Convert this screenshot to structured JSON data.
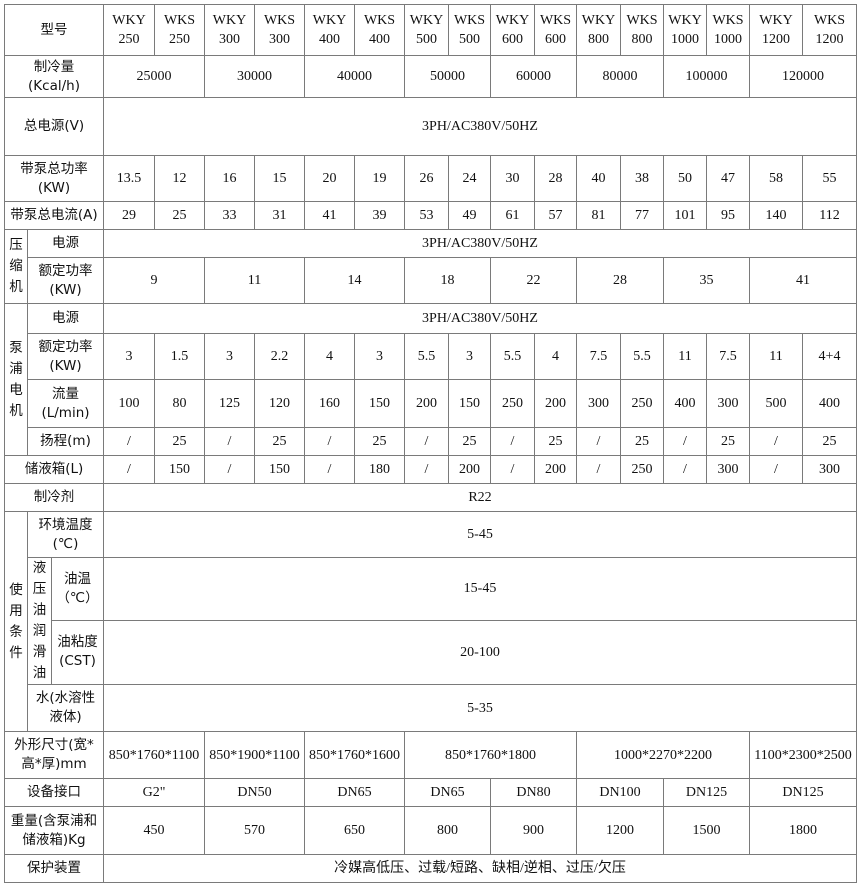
{
  "models": [
    {
      "series": "WKY",
      "size": "250"
    },
    {
      "series": "WKS",
      "size": "250"
    },
    {
      "series": "WKY",
      "size": "300"
    },
    {
      "series": "WKS",
      "size": "300"
    },
    {
      "series": "WKY",
      "size": "400"
    },
    {
      "series": "WKS",
      "size": "400"
    },
    {
      "series": "WKY",
      "size": "500"
    },
    {
      "series": "WKS",
      "size": "500"
    },
    {
      "series": "WKY",
      "size": "600"
    },
    {
      "series": "WKS",
      "size": "600"
    },
    {
      "series": "WKY",
      "size": "800"
    },
    {
      "series": "WKS",
      "size": "800"
    },
    {
      "series": "WKY",
      "size": "1000"
    },
    {
      "series": "WKS",
      "size": "1000"
    },
    {
      "series": "WKY",
      "size": "1200"
    },
    {
      "series": "WKS",
      "size": "1200"
    }
  ],
  "labels": {
    "model": "型号",
    "cooling": [
      "制冷量",
      "(Kcal/h)"
    ],
    "main_power": "总电源(V)",
    "total_power": [
      "带泵总功率",
      "(KW)"
    ],
    "total_current": "带泵总电流(A)",
    "compressor": "压缩机",
    "power_supply": "电源",
    "rated_power": [
      "额定功率",
      "(KW)"
    ],
    "pump_motor": "泵浦电机",
    "flow": [
      "流量",
      "(L/min)"
    ],
    "head": "扬程(m)",
    "tank": "储液箱(L)",
    "refrigerant": "制冷剂",
    "usage": "使用条件",
    "ambient": [
      "环境温度",
      "(℃)"
    ],
    "hydraulic_oil": "液压油润滑油",
    "oil_temp": [
      "油温",
      "（℃）"
    ],
    "oil_viscosity": [
      "油粘度",
      "(CST)"
    ],
    "water": [
      "水(水溶性",
      "液体)"
    ],
    "dimensions": [
      "外形尺寸(宽*",
      "高*厚)mm"
    ],
    "interface": "设备接口",
    "weight": [
      "重量(含泵浦和",
      "储液箱)Kg"
    ],
    "protection": "保护装置"
  },
  "values": {
    "cooling": [
      "25000",
      "30000",
      "40000",
      "50000",
      "60000",
      "80000",
      "100000",
      "120000"
    ],
    "main_power": "3PH/AC380V/50HZ",
    "total_power": [
      "13.5",
      "12",
      "16",
      "15",
      "20",
      "19",
      "26",
      "24",
      "30",
      "28",
      "40",
      "38",
      "50",
      "47",
      "58",
      "55"
    ],
    "total_current": [
      "29",
      "25",
      "33",
      "31",
      "41",
      "39",
      "53",
      "49",
      "61",
      "57",
      "81",
      "77",
      "101",
      "95",
      "140",
      "112"
    ],
    "compressor_power_supply": "3PH/AC380V/50HZ",
    "compressor_rated_power": [
      "9",
      "11",
      "14",
      "18",
      "22",
      "28",
      "35",
      "41"
    ],
    "pump_power_supply": "3PH/AC380V/50HZ",
    "pump_rated_power": [
      "3",
      "1.5",
      "3",
      "2.2",
      "4",
      "3",
      "5.5",
      "3",
      "5.5",
      "4",
      "7.5",
      "5.5",
      "11",
      "7.5",
      "11",
      "4+4"
    ],
    "flow": [
      "100",
      "80",
      "125",
      "120",
      "160",
      "150",
      "200",
      "150",
      "250",
      "200",
      "300",
      "250",
      "400",
      "300",
      "500",
      "400"
    ],
    "head": [
      "/",
      "25",
      "/",
      "25",
      "/",
      "25",
      "/",
      "25",
      "/",
      "25",
      "/",
      "25",
      "/",
      "25",
      "/",
      "25"
    ],
    "tank": [
      "/",
      "150",
      "/",
      "150",
      "/",
      "180",
      "/",
      "200",
      "/",
      "200",
      "/",
      "250",
      "/",
      "300",
      "/",
      "300"
    ],
    "refrigerant": "R22",
    "ambient": "5-45",
    "oil_temp": "15-45",
    "oil_viscosity": "20-100",
    "water": "5-35",
    "dimensions": [
      "850*1760*1100",
      "850*1900*1100",
      "850*1760*1600",
      "850*1760*1800",
      "1000*2270*2200",
      "1100*2300*2500"
    ],
    "interface": [
      "G2\"",
      "DN50",
      "DN65",
      "DN65",
      "DN80",
      "DN100",
      "DN125",
      "DN125"
    ],
    "weight": [
      "450",
      "570",
      "650",
      "800",
      "900",
      "1200",
      "1500",
      "1800"
    ],
    "protection": "冷媒高低压、过载/短路、缺相/逆相、过压/欠压"
  }
}
